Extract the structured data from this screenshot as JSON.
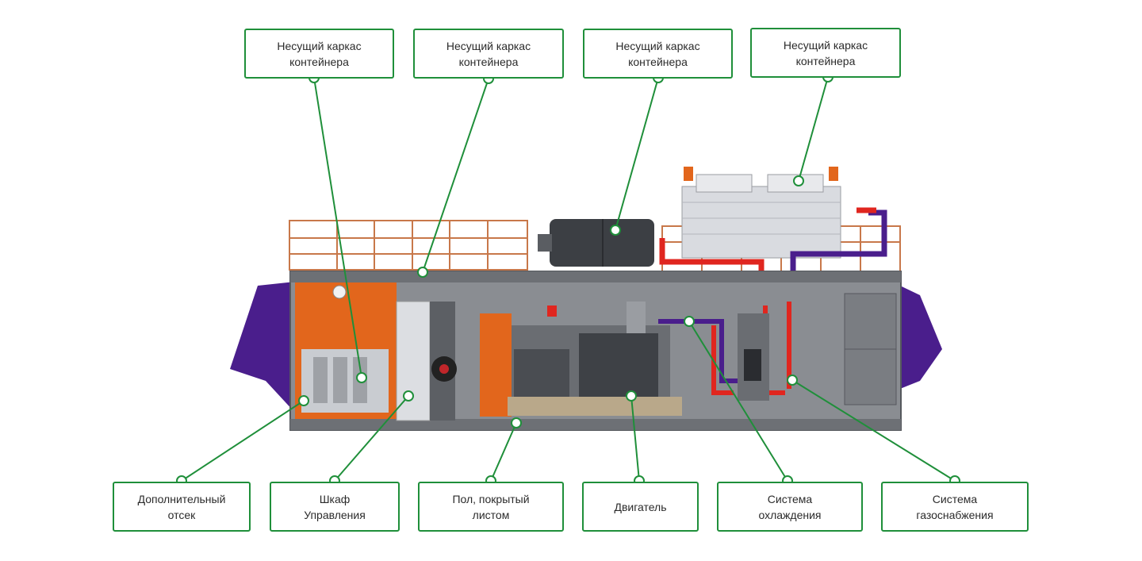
{
  "callouts_top": [
    {
      "id": "frame-1",
      "text": "Несущий каркас\nконтейнера"
    },
    {
      "id": "frame-2",
      "text": "Несущий каркас\nконтейнера"
    },
    {
      "id": "frame-3",
      "text": "Несущий каркас\nконтейнера"
    },
    {
      "id": "frame-4",
      "text": "Несущий каркас\nконтейнера"
    }
  ],
  "callouts_bottom": [
    {
      "id": "extra-compartment",
      "text": "Дополнительный\nотсек"
    },
    {
      "id": "control-cabinet",
      "text": "Шкаф\nУправления"
    },
    {
      "id": "sheet-floor",
      "text": "Пол, покрытый\nлистом"
    },
    {
      "id": "engine",
      "text": "Двигатель"
    },
    {
      "id": "cooling-system",
      "text": "Система\nохлаждения"
    },
    {
      "id": "gas-supply",
      "text": "Система\nгазоснабжения"
    }
  ],
  "colors": {
    "accent_green": "#1f8f3a",
    "container_grey": "#8a8d92",
    "orange": "#e2661c",
    "purple": "#4a1e8c",
    "red_pipe": "#e0261f"
  }
}
